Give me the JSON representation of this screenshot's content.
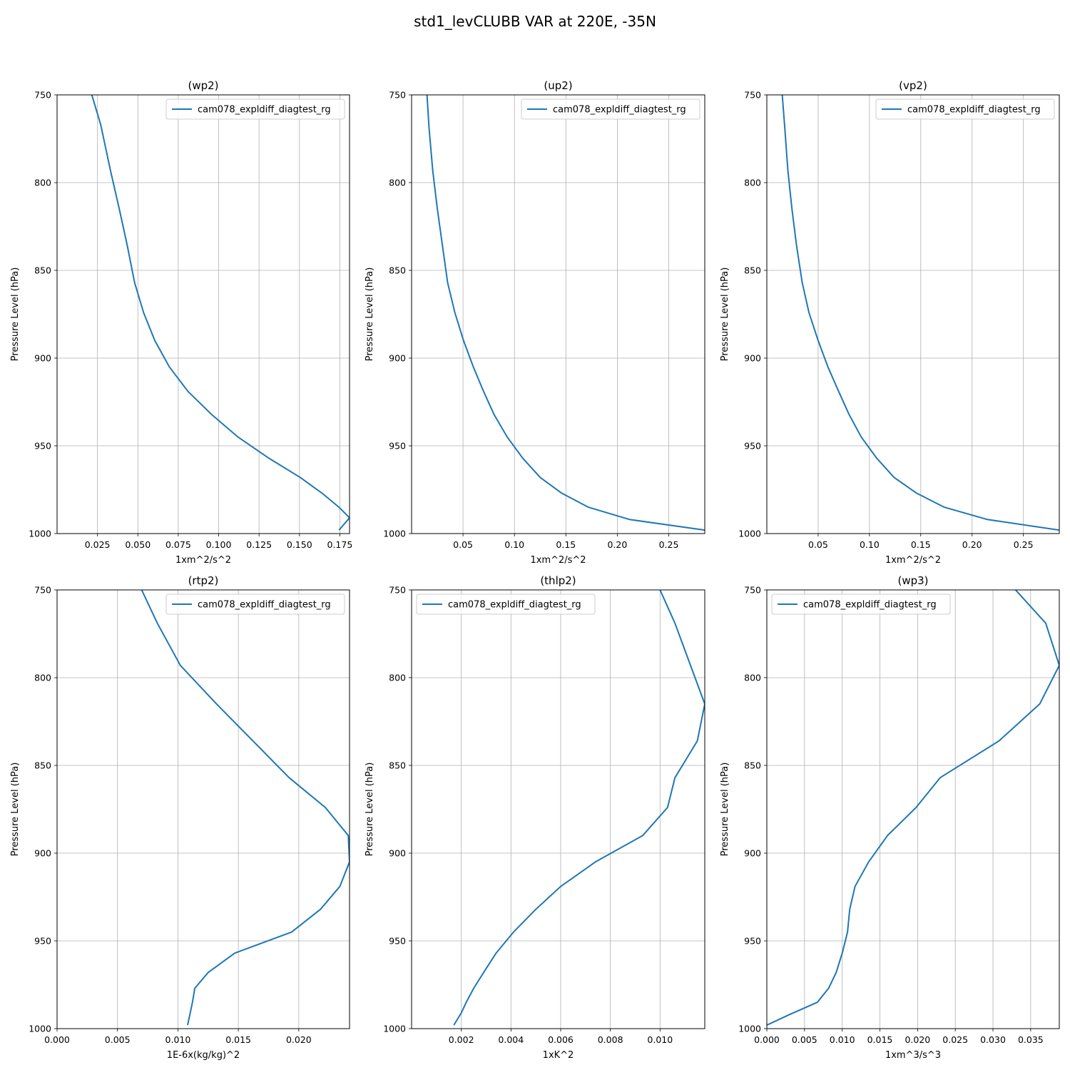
{
  "figure": {
    "suptitle": "std1_levCLUBB VAR at 220E, -35N"
  },
  "colors": {
    "series": "#1f77b4",
    "grid": "#b0b0b0"
  },
  "chart_data": [
    {
      "type": "line",
      "title": "(wp2)",
      "xlabel": "1xm^2/s^2",
      "ylabel": "Pressure Level (hPa)",
      "xlim": [
        0.0,
        0.181
      ],
      "ylim": [
        1000,
        750
      ],
      "xticks": [
        0.025,
        0.05,
        0.075,
        0.1,
        0.125,
        0.15,
        0.175
      ],
      "xtick_labels": [
        "0.025",
        "0.050",
        "0.075",
        "0.100",
        "0.125",
        "0.150",
        "0.175"
      ],
      "yticks": [
        750,
        800,
        850,
        900,
        950,
        1000
      ],
      "ytick_labels": [
        "750",
        "800",
        "850",
        "900",
        "950",
        "1000"
      ],
      "grid": true,
      "legend_position": "upper right",
      "series": [
        {
          "name": "cam078_expldiff_diagtest_rg",
          "x": [
            0.0215,
            0.027,
            0.033,
            0.0385,
            0.0435,
            0.048,
            0.0535,
            0.0605,
            0.0695,
            0.081,
            0.0955,
            0.112,
            0.131,
            0.1505,
            0.164,
            0.1745,
            0.181,
            0.1745
          ],
          "y": [
            750,
            767,
            793,
            815,
            836,
            857,
            874,
            890,
            905,
            919,
            932,
            945,
            957,
            968,
            977,
            985,
            991,
            998
          ]
        }
      ]
    },
    {
      "type": "line",
      "title": "(up2)",
      "xlabel": "1xm^2/s^2",
      "ylabel": "Pressure Level (hPa)",
      "xlim": [
        0.0,
        0.285
      ],
      "ylim": [
        1000,
        750
      ],
      "xticks": [
        0.05,
        0.1,
        0.15,
        0.2,
        0.25
      ],
      "xtick_labels": [
        "0.05",
        "0.10",
        "0.15",
        "0.20",
        "0.25"
      ],
      "yticks": [
        750,
        800,
        850,
        900,
        950,
        1000
      ],
      "ytick_labels": [
        "750",
        "800",
        "850",
        "900",
        "950",
        "1000"
      ],
      "grid": true,
      "legend_position": "upper right",
      "series": [
        {
          "name": "cam078_expldiff_diagtest_rg",
          "x": [
            0.015,
            0.017,
            0.0205,
            0.025,
            0.03,
            0.035,
            0.042,
            0.0505,
            0.06,
            0.07,
            0.08,
            0.093,
            0.108,
            0.125,
            0.146,
            0.172,
            0.212,
            0.285
          ],
          "y": [
            750,
            769,
            793,
            815,
            836,
            857,
            874,
            890,
            905,
            919,
            932,
            945,
            957,
            968,
            977,
            985,
            992,
            998
          ]
        }
      ]
    },
    {
      "type": "line",
      "title": "(vp2)",
      "xlabel": "1xm^2/s^2",
      "ylabel": "Pressure Level (hPa)",
      "xlim": [
        0.0,
        0.285
      ],
      "ylim": [
        1000,
        750
      ],
      "xticks": [
        0.05,
        0.1,
        0.15,
        0.2,
        0.25
      ],
      "xtick_labels": [
        "0.05",
        "0.10",
        "0.15",
        "0.20",
        "0.25"
      ],
      "yticks": [
        750,
        800,
        850,
        900,
        950,
        1000
      ],
      "ytick_labels": [
        "750",
        "800",
        "850",
        "900",
        "950",
        "1000"
      ],
      "grid": true,
      "legend_position": "upper right",
      "series": [
        {
          "name": "cam078_expldiff_diagtest_rg",
          "x": [
            0.015,
            0.0175,
            0.0205,
            0.0245,
            0.029,
            0.0345,
            0.041,
            0.05,
            0.0595,
            0.07,
            0.08,
            0.092,
            0.107,
            0.124,
            0.146,
            0.173,
            0.215,
            0.285
          ],
          "y": [
            750,
            769,
            793,
            815,
            836,
            857,
            874,
            890,
            905,
            919,
            932,
            945,
            957,
            968,
            977,
            985,
            992,
            998
          ]
        }
      ]
    },
    {
      "type": "line",
      "title": "(rtp2)",
      "xlabel": "1E-6x(kg/kg)^2",
      "ylabel": "Pressure Level (hPa)",
      "xlim": [
        0.0,
        0.0242
      ],
      "ylim": [
        1000,
        750
      ],
      "xticks": [
        0.0,
        0.005,
        0.01,
        0.015,
        0.02
      ],
      "xtick_labels": [
        "0.000",
        "0.005",
        "0.010",
        "0.015",
        "0.020"
      ],
      "yticks": [
        750,
        800,
        850,
        900,
        950,
        1000
      ],
      "ytick_labels": [
        "750",
        "800",
        "850",
        "900",
        "950",
        "1000"
      ],
      "grid": true,
      "legend_position": "upper right",
      "series": [
        {
          "name": "cam078_expldiff_diagtest_rg",
          "x": [
            0.007,
            0.0083,
            0.0102,
            0.0132,
            0.0162,
            0.0192,
            0.0222,
            0.0241,
            0.0242,
            0.0234,
            0.0218,
            0.0194,
            0.0147,
            0.0125,
            0.0114,
            0.0112,
            0.0108
          ],
          "y": [
            750,
            769,
            793,
            815,
            836,
            857,
            874,
            890,
            905,
            919,
            932,
            945,
            957,
            968,
            977,
            985,
            998
          ]
        }
      ]
    },
    {
      "type": "line",
      "title": "(thlp2)",
      "xlabel": "1xK^2",
      "ylabel": "Pressure Level (hPa)",
      "xlim": [
        0.0,
        0.0118
      ],
      "ylim": [
        1000,
        750
      ],
      "xticks": [
        0.002,
        0.004,
        0.006,
        0.008,
        0.01
      ],
      "xtick_labels": [
        "0.002",
        "0.004",
        "0.006",
        "0.008",
        "0.010"
      ],
      "yticks": [
        750,
        800,
        850,
        900,
        950,
        1000
      ],
      "ytick_labels": [
        "750",
        "800",
        "850",
        "900",
        "950",
        "1000"
      ],
      "grid": true,
      "legend_position": "upper left",
      "series": [
        {
          "name": "cam078_expldiff_diagtest_rg",
          "x": [
            0.01,
            0.0106,
            0.0118,
            0.0115,
            0.0106,
            0.0103,
            0.0093,
            0.0074,
            0.006,
            0.005,
            0.0041,
            0.0034,
            0.0029,
            0.0025,
            0.0022,
            0.002,
            0.0017
          ],
          "y": [
            750,
            769,
            815,
            836,
            857,
            874,
            890,
            905,
            919,
            932,
            945,
            957,
            968,
            977,
            985,
            991,
            998
          ]
        }
      ]
    },
    {
      "type": "line",
      "title": "(wp3)",
      "xlabel": "1xm^3/s^3",
      "ylabel": "Pressure Level (hPa)",
      "xlim": [
        0.0,
        0.0388
      ],
      "ylim": [
        1000,
        750
      ],
      "xticks": [
        0.0,
        0.005,
        0.01,
        0.015,
        0.02,
        0.025,
        0.03,
        0.035
      ],
      "xtick_labels": [
        "0.000",
        "0.005",
        "0.010",
        "0.015",
        "0.020",
        "0.025",
        "0.030",
        "0.035"
      ],
      "yticks": [
        750,
        800,
        850,
        900,
        950,
        1000
      ],
      "ytick_labels": [
        "750",
        "800",
        "850",
        "900",
        "950",
        "1000"
      ],
      "grid": true,
      "legend_position": "upper left",
      "series": [
        {
          "name": "cam078_expldiff_diagtest_rg",
          "x": [
            0.033,
            0.037,
            0.0388,
            0.0362,
            0.0308,
            0.023,
            0.0198,
            0.016,
            0.0135,
            0.0117,
            0.011,
            0.0107,
            0.01,
            0.0092,
            0.0082,
            0.0067,
            0.003,
            0.0
          ],
          "y": [
            750,
            769,
            793,
            815,
            836,
            857,
            874,
            890,
            905,
            919,
            932,
            945,
            957,
            968,
            977,
            985,
            992,
            998
          ]
        }
      ]
    }
  ]
}
